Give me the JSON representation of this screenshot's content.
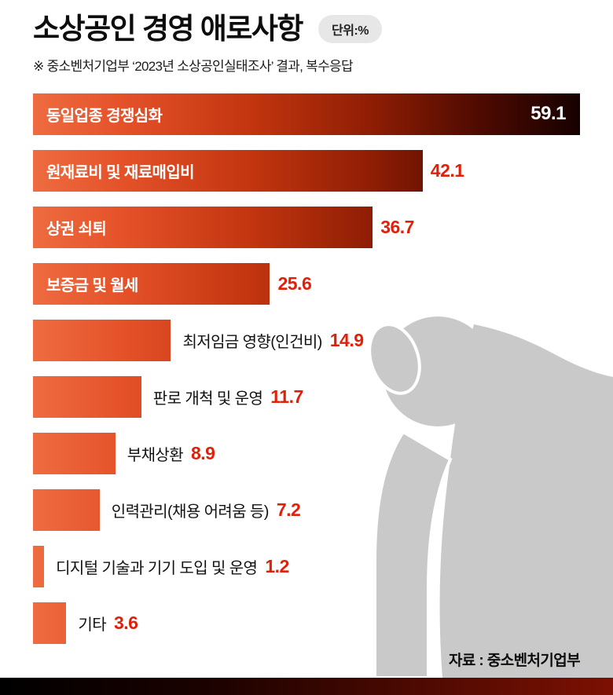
{
  "header": {
    "title": "소상공인 경영 애로사항",
    "unit_badge": "단위:%",
    "subtitle": "※ 중소벤처기업부 ‘2023년 소상공인실태조사’ 결과, 복수응답"
  },
  "chart_data": {
    "type": "bar",
    "orientation": "horizontal",
    "title": "소상공인 경영 애로사항",
    "unit": "%",
    "max": 59.1,
    "xlim": [
      0,
      59.1
    ],
    "categories": [
      "동일업종 경쟁심화",
      "원재료비 및 재료매입비",
      "상권 쇠퇴",
      "보증금 및 월세",
      "최저임금 영향(인건비)",
      "판로 개척 및 운영",
      "부채상환",
      "인력관리(채용 어려움 등)",
      "디지털 기술과 기기 도입 및 운영",
      "기타"
    ],
    "values": [
      59.1,
      42.1,
      36.7,
      25.6,
      14.9,
      11.7,
      8.9,
      7.2,
      1.2,
      3.6
    ],
    "rows": [
      {
        "label": "동일업종 경쟁심화",
        "value": 59.1,
        "display": "59.1",
        "label_inside": true,
        "value_inside": true
      },
      {
        "label": "원재료비 및 재료매입비",
        "value": 42.1,
        "display": "42.1",
        "label_inside": true,
        "value_inside": false
      },
      {
        "label": "상권 쇠퇴",
        "value": 36.7,
        "display": "36.7",
        "label_inside": true,
        "value_inside": false
      },
      {
        "label": "보증금 및 월세",
        "value": 25.6,
        "display": "25.6",
        "label_inside": true,
        "value_inside": false
      },
      {
        "label": "최저임금 영향(인건비)",
        "value": 14.9,
        "display": "14.9",
        "label_inside": false,
        "value_inside": false
      },
      {
        "label": "판로 개척 및 운영",
        "value": 11.7,
        "display": "11.7",
        "label_inside": false,
        "value_inside": false
      },
      {
        "label": "부채상환",
        "value": 8.9,
        "display": "8.9",
        "label_inside": false,
        "value_inside": false
      },
      {
        "label": "인력관리(채용 어려움 등)",
        "value": 7.2,
        "display": "7.2",
        "label_inside": false,
        "value_inside": false
      },
      {
        "label": "디지털 기술과 기기 도입 및 운영",
        "value": 1.2,
        "display": "1.2",
        "label_inside": false,
        "value_inside": false
      },
      {
        "label": "기타",
        "value": 3.6,
        "display": "3.6",
        "label_inside": false,
        "value_inside": false
      }
    ]
  },
  "footer": {
    "source": "자료 : 중소벤처기업부"
  },
  "colors": {
    "bar_gradient_start": "#ee6c40",
    "bar_gradient_end": "#160100",
    "value_red": "#e0200a",
    "silhouette_gray": "#c9c9c9",
    "badge_bg": "#e7e7e7",
    "footer_bar_left": "#000000",
    "footer_bar_right": "#7c1103"
  }
}
